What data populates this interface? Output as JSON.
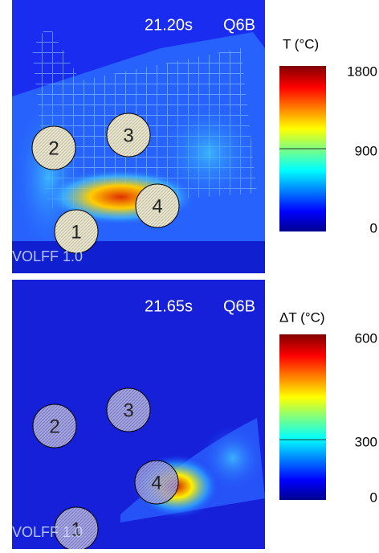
{
  "panels": [
    {
      "time": "21.20s",
      "shot": "Q6B",
      "watermark": "VOLFF 1.0",
      "colorbar": {
        "title": "T (°C)",
        "ticks": [
          1800,
          900,
          0
        ]
      },
      "markers": [
        "1",
        "2",
        "3",
        "4"
      ]
    },
    {
      "time": "21.65s",
      "shot": "Q6B",
      "watermark": "VOLFF 1.0",
      "colorbar": {
        "title": "ΔT (°C)",
        "ticks": [
          600,
          300,
          0
        ]
      },
      "markers": [
        "1",
        "2",
        "3",
        "4"
      ]
    }
  ]
}
